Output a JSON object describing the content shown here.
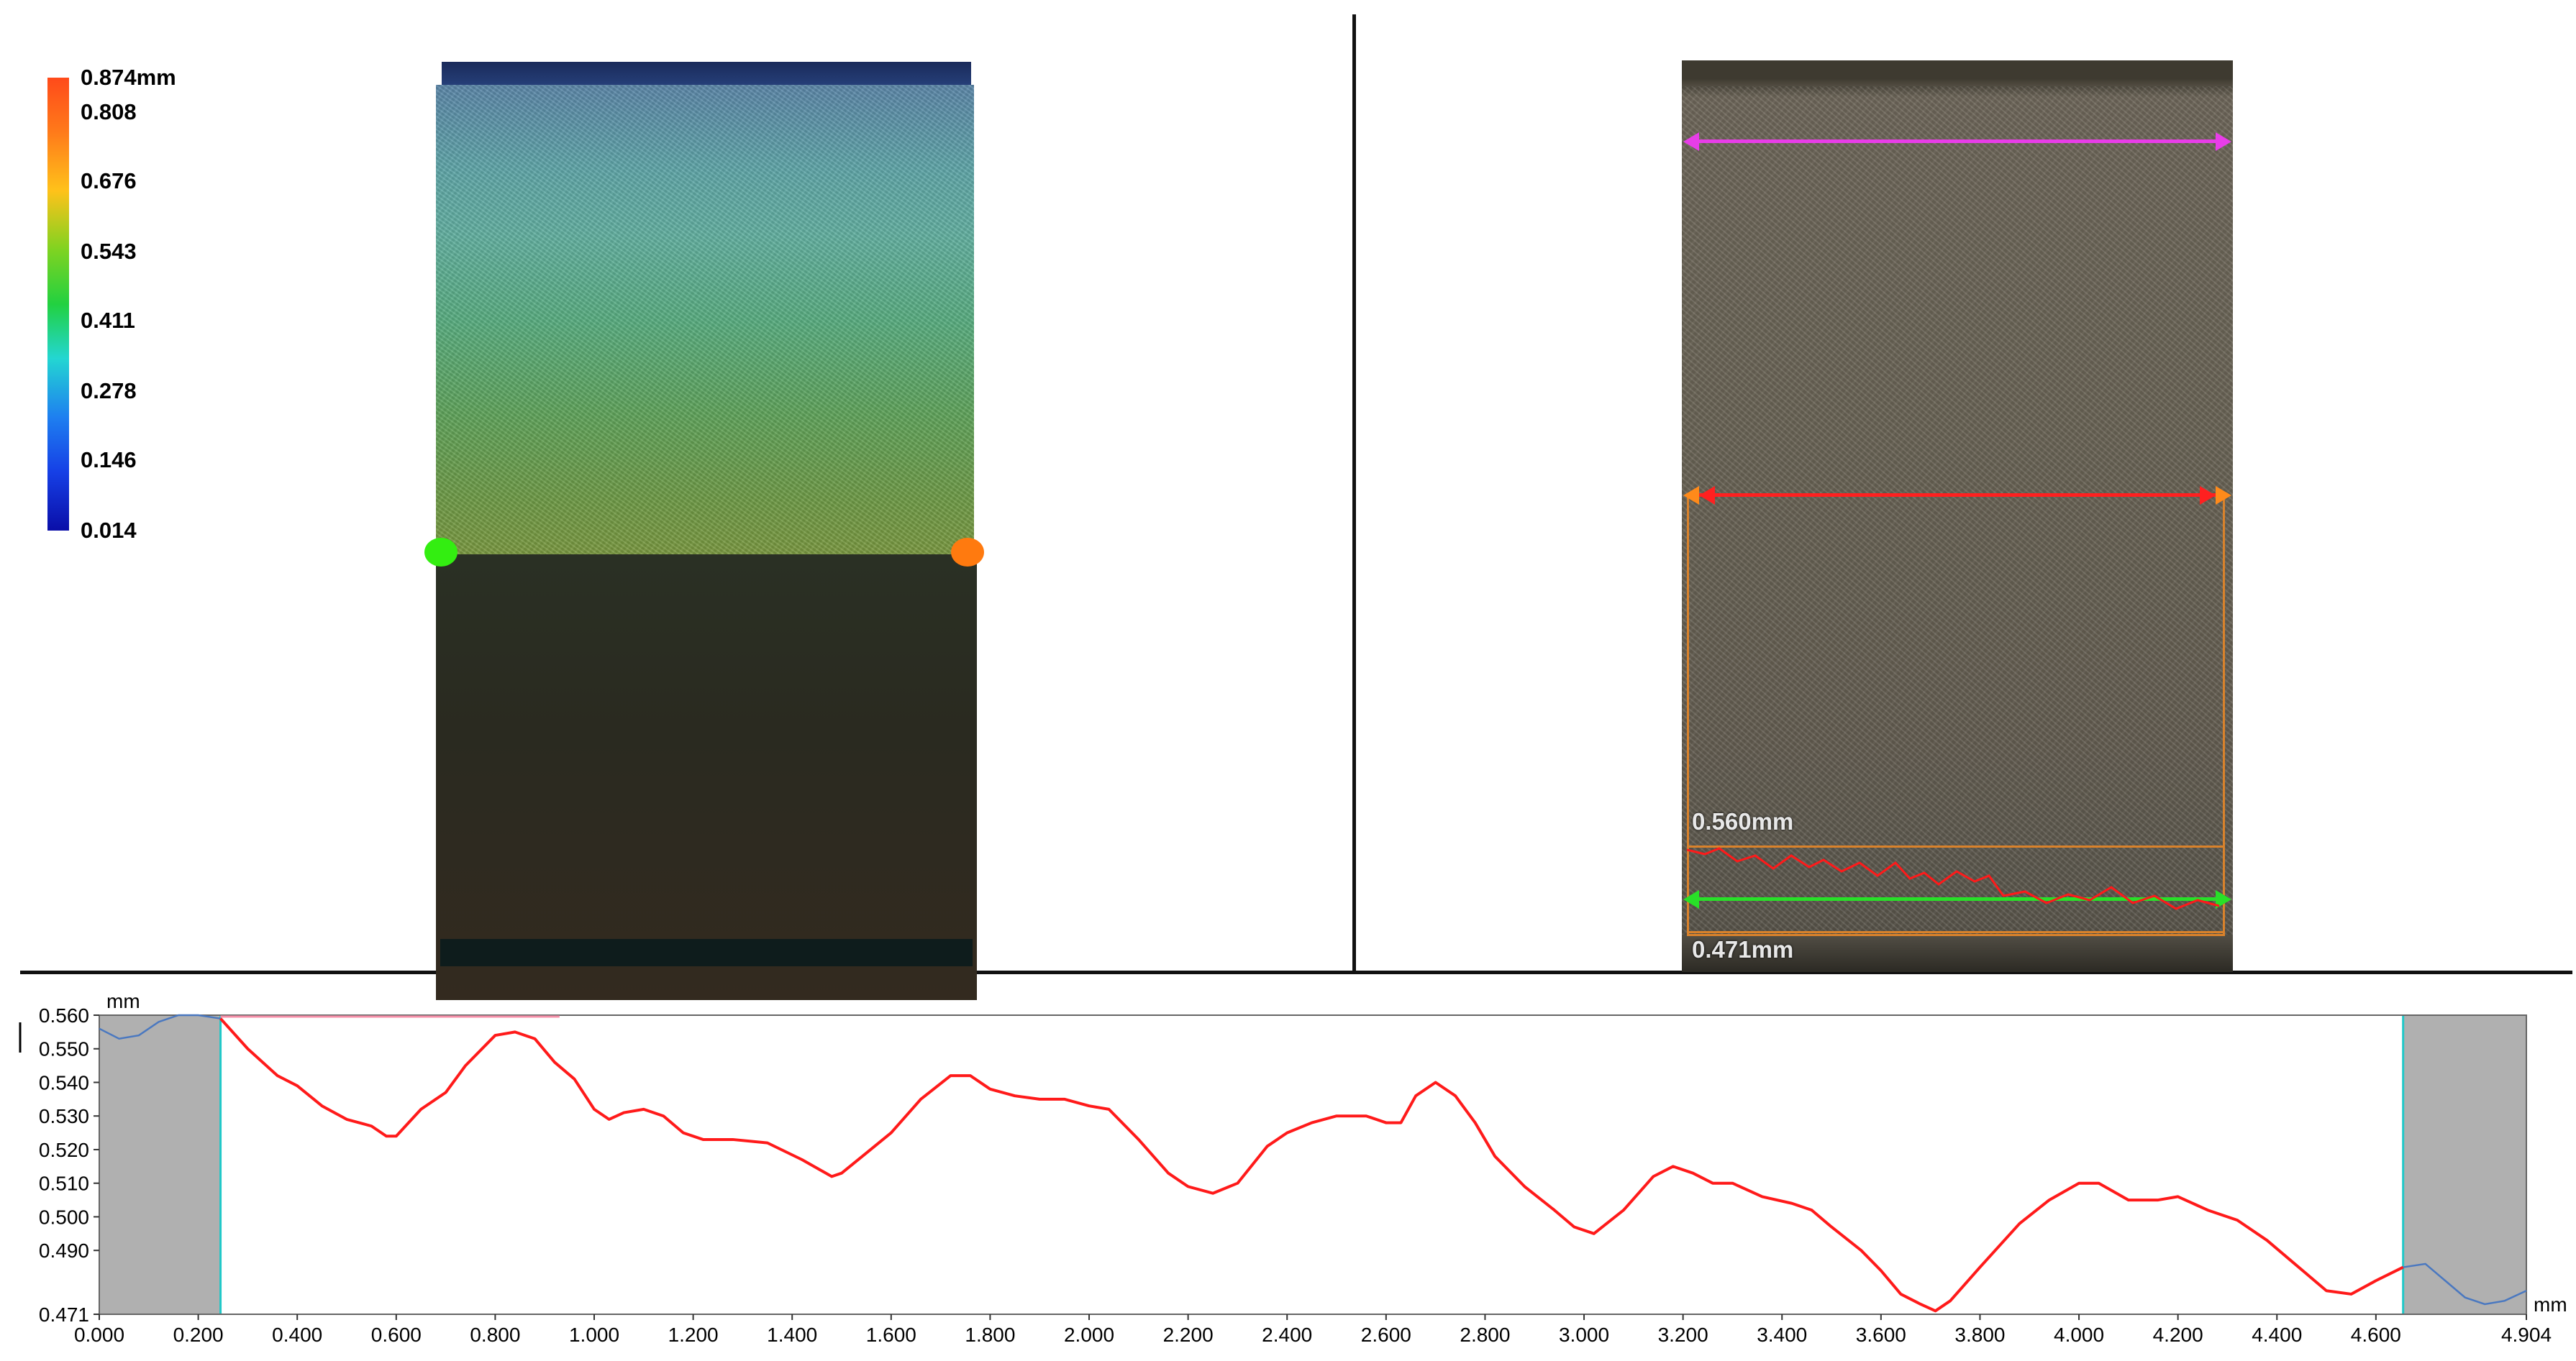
{
  "colorbar": {
    "labels": [
      "0.874mm",
      "0.808",
      "0.676",
      "0.543",
      "0.411",
      "0.278",
      "0.146",
      "0.014"
    ],
    "max_value": 0.874,
    "min_value": 0.014,
    "colors": [
      "#ff4a1a",
      "#ffc21a",
      "#22d140",
      "#23d6d2",
      "#1640e6",
      "#0a0ea8"
    ]
  },
  "measurements": {
    "upper_label": "0.560mm",
    "lower_label": "0.471mm",
    "colors": {
      "top_line": "#e83de8",
      "mid_line": "#ff2020",
      "bottom_line": "#28e028",
      "roi": "#d9822b"
    }
  },
  "profile": {
    "y_unit": "mm",
    "x_unit": "mm",
    "colors": {
      "profile": "#ff1a1a",
      "excluded_profile": "#4a78c0",
      "excluded_region": "#b0b0b0",
      "boundary": "#20c8c8"
    }
  },
  "chart_data": {
    "type": "line",
    "title": "",
    "xlabel": "mm",
    "ylabel": "mm",
    "xlim": [
      0.0,
      4.904
    ],
    "ylim": [
      0.471,
      0.56
    ],
    "grid": false,
    "x_ticks": [
      "0.000",
      "0.200",
      "0.400",
      "0.600",
      "0.800",
      "1.000",
      "1.200",
      "1.400",
      "1.600",
      "1.800",
      "2.000",
      "2.200",
      "2.400",
      "2.600",
      "2.800",
      "3.000",
      "3.200",
      "3.400",
      "3.600",
      "3.800",
      "4.000",
      "4.200",
      "4.400",
      "4.600",
      "4.904"
    ],
    "y_ticks": [
      "0.560",
      "0.550",
      "0.540",
      "0.530",
      "0.520",
      "0.510",
      "0.500",
      "0.490",
      "0.471"
    ],
    "excluded_regions": [
      [
        0.0,
        0.245
      ],
      [
        4.655,
        4.904
      ]
    ],
    "series": [
      {
        "x": [
          0.245,
          0.3,
          0.36,
          0.4,
          0.45,
          0.5,
          0.55,
          0.58,
          0.6,
          0.65,
          0.7,
          0.74,
          0.8,
          0.84,
          0.88,
          0.92,
          0.96,
          1.0,
          1.03,
          1.06,
          1.1,
          1.14,
          1.18,
          1.22,
          1.28,
          1.35,
          1.42,
          1.48,
          1.5,
          1.55,
          1.6,
          1.66,
          1.72,
          1.76,
          1.8,
          1.85,
          1.9,
          1.95,
          2.0,
          2.04,
          2.1,
          2.16,
          2.2,
          2.25,
          2.3,
          2.36,
          2.4,
          2.45,
          2.5,
          2.56,
          2.6,
          2.63,
          2.66,
          2.7,
          2.74,
          2.78,
          2.82,
          2.88,
          2.94,
          2.98,
          3.02,
          3.08,
          3.14,
          3.18,
          3.22,
          3.26,
          3.3,
          3.36,
          3.42,
          3.46,
          3.5,
          3.56,
          3.6,
          3.64,
          3.68,
          3.71,
          3.74,
          3.8,
          3.88,
          3.94,
          4.0,
          4.04,
          4.1,
          4.16,
          4.2,
          4.26,
          4.32,
          4.38,
          4.42,
          4.46,
          4.5,
          4.55,
          4.6,
          4.655
        ],
        "y": [
          0.559,
          0.55,
          0.542,
          0.539,
          0.533,
          0.529,
          0.527,
          0.524,
          0.524,
          0.532,
          0.537,
          0.545,
          0.554,
          0.555,
          0.553,
          0.546,
          0.541,
          0.532,
          0.529,
          0.531,
          0.532,
          0.53,
          0.525,
          0.523,
          0.523,
          0.522,
          0.517,
          0.512,
          0.513,
          0.519,
          0.525,
          0.535,
          0.542,
          0.542,
          0.538,
          0.536,
          0.535,
          0.535,
          0.533,
          0.532,
          0.523,
          0.513,
          0.509,
          0.507,
          0.51,
          0.521,
          0.525,
          0.528,
          0.53,
          0.53,
          0.528,
          0.528,
          0.536,
          0.54,
          0.536,
          0.528,
          0.518,
          0.509,
          0.502,
          0.497,
          0.495,
          0.502,
          0.512,
          0.515,
          0.513,
          0.51,
          0.51,
          0.506,
          0.504,
          0.502,
          0.497,
          0.49,
          0.484,
          0.477,
          0.474,
          0.472,
          0.475,
          0.485,
          0.498,
          0.505,
          0.51,
          0.51,
          0.505,
          0.505,
          0.506,
          0.502,
          0.499,
          0.493,
          0.488,
          0.483,
          0.478,
          0.477,
          0.481,
          0.485
        ]
      }
    ],
    "excluded_series": [
      {
        "x": [
          0.0,
          0.04,
          0.08,
          0.12,
          0.16,
          0.2,
          0.245
        ],
        "y": [
          0.556,
          0.553,
          0.554,
          0.558,
          0.56,
          0.56,
          0.559
        ]
      },
      {
        "x": [
          4.655,
          4.7,
          4.74,
          4.78,
          4.82,
          4.86,
          4.904
        ],
        "y": [
          0.485,
          0.486,
          0.481,
          0.476,
          0.474,
          0.475,
          0.478
        ]
      }
    ]
  }
}
